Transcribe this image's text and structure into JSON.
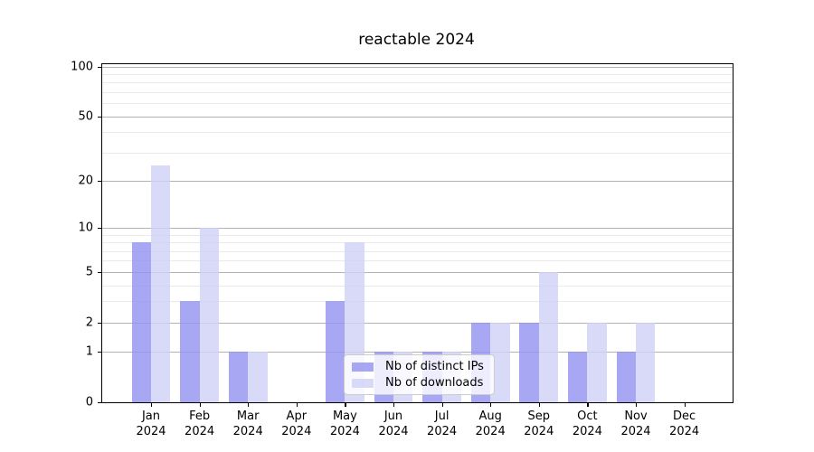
{
  "chart_data": {
    "type": "bar",
    "title": "reactable 2024",
    "categories": [
      "Jan",
      "Feb",
      "Mar",
      "Apr",
      "May",
      "Jun",
      "Jul",
      "Aug",
      "Sep",
      "Oct",
      "Nov",
      "Dec"
    ],
    "year": "2024",
    "series": [
      {
        "name": "Nb of distinct IPs",
        "color": "rgba(145,145,240,0.8)",
        "values": [
          8,
          3,
          1,
          0,
          3,
          1,
          1,
          2,
          2,
          1,
          1,
          0
        ]
      },
      {
        "name": "Nb of downloads",
        "color": "rgba(207,207,246,0.8)",
        "values": [
          25,
          10,
          1,
          0,
          8,
          1,
          1,
          2,
          5,
          2,
          2,
          0
        ]
      }
    ],
    "y_scale": "log1p",
    "ylim": [
      0,
      103
    ],
    "y_major_ticks": [
      0,
      1,
      2,
      5,
      10,
      20,
      50,
      100
    ],
    "y_minor_gridlines": [
      3,
      4,
      6,
      7,
      8,
      9,
      30,
      40,
      60,
      70,
      80,
      90
    ],
    "grid": "on",
    "legend_position": "lower center",
    "colors": {
      "major_grid": "#b3b3b3",
      "minor_grid": "#eaeaea",
      "axis": "#000000",
      "background": "#ffffff"
    }
  }
}
